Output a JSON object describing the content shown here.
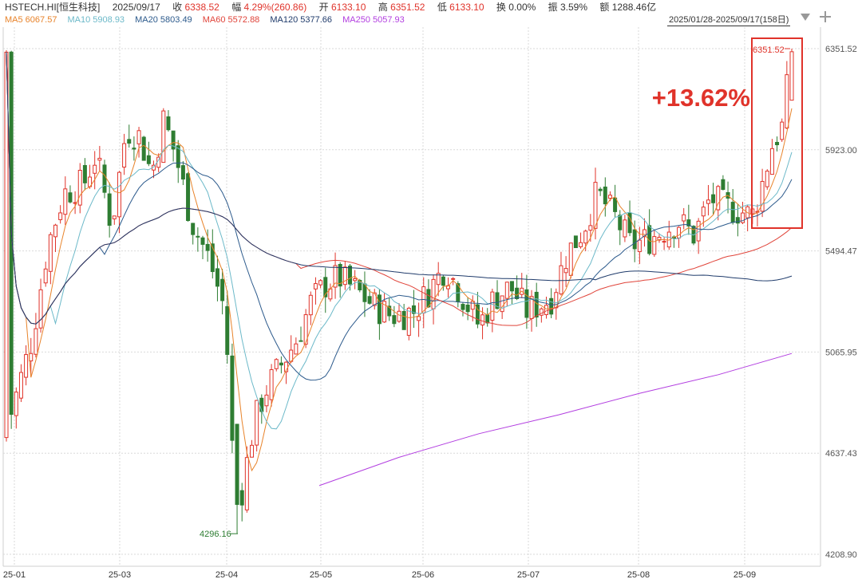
{
  "header": {
    "symbol": "HSTECH.HI[恒生科技]",
    "date": "2025/09/17",
    "close_label": "收",
    "close_value": "6338.52",
    "change_label": "幅",
    "change_value": "4.29%(260.86)",
    "open_label": "开",
    "open_value": "6133.10",
    "high_label": "高",
    "high_value": "6351.52",
    "low_label": "低",
    "low_value": "6133.10",
    "turnover_label": "换",
    "turnover_value": "0.00%",
    "amplitude_label": "振",
    "amplitude_value": "3.59%",
    "amount_label": "额",
    "amount_value": "1288.46亿"
  },
  "ma_legend": [
    {
      "text": "MA5 6067.57",
      "color": "#e8832a"
    },
    {
      "text": "MA10 5908.93",
      "color": "#6cb9c9"
    },
    {
      "text": "MA20 5803.49",
      "color": "#2c5a8c"
    },
    {
      "text": "MA60 5572.88",
      "color": "#e0443a"
    },
    {
      "text": "MA120 5377.66",
      "color": "#1f3b6b"
    },
    {
      "text": "MA250 5057.93",
      "color": "#b23ee0"
    }
  ],
  "range_label": "2025/01/28-2025/09/17(158日)",
  "icons": {
    "dropdown": "triangle-down-icon",
    "add": "plus-icon"
  },
  "colors": {
    "up": "#e0332a",
    "down": "#2e7d32",
    "grid": "#d9d9d9",
    "highlight": "#e0332a"
  },
  "annotation": {
    "text": "+13.62%",
    "color": "#e0332a"
  },
  "chart_data": {
    "type": "candlestick",
    "title": "",
    "y_ticks": [
      "6351.52",
      "5923.00",
      "5494.47",
      "5065.95",
      "4637.43",
      "4208.90"
    ],
    "x_ticks": [
      "25-01",
      "25-03",
      "25-04",
      "25-05",
      "25-06",
      "25-07",
      "25-08",
      "25-09"
    ],
    "ylim": [
      4208.9,
      6351.52
    ],
    "high_marker": {
      "label": "6351.52",
      "value": 6351.52
    },
    "low_marker": {
      "label": "4296.16",
      "value": 4296.16
    },
    "grid": true,
    "up_color": "#e0332a",
    "down_color": "#2e7d32",
    "key_points": [
      {
        "date": "2025-01-02",
        "close": 4760
      },
      {
        "date": "2025-02-10",
        "close": 5700
      },
      {
        "date": "2025-02-21",
        "close": 6000
      },
      {
        "date": "2025-03-07",
        "close": 6110
      },
      {
        "date": "2025-03-19",
        "close": 5990
      },
      {
        "date": "2025-04-01",
        "close": 5460
      },
      {
        "date": "2025-04-07",
        "close": 4420
      },
      {
        "date": "2025-04-30",
        "close": 5140
      },
      {
        "date": "2025-05-14",
        "close": 5380
      },
      {
        "date": "2025-06-13",
        "close": 5180
      },
      {
        "date": "2025-07-10",
        "close": 5340
      },
      {
        "date": "2025-07-24",
        "close": 5740
      },
      {
        "date": "2025-08-20",
        "close": 5560
      },
      {
        "date": "2025-09-02",
        "close": 5640
      },
      {
        "date": "2025-09-17",
        "close": 6338.52
      }
    ],
    "series": [
      {
        "name": "MA5",
        "last": 6067.57
      },
      {
        "name": "MA10",
        "last": 5908.93
      },
      {
        "name": "MA20",
        "last": 5803.49
      },
      {
        "name": "MA60",
        "last": 5572.88
      },
      {
        "name": "MA120",
        "last": 5377.66
      },
      {
        "name": "MA250",
        "last": 5057.93
      }
    ]
  }
}
